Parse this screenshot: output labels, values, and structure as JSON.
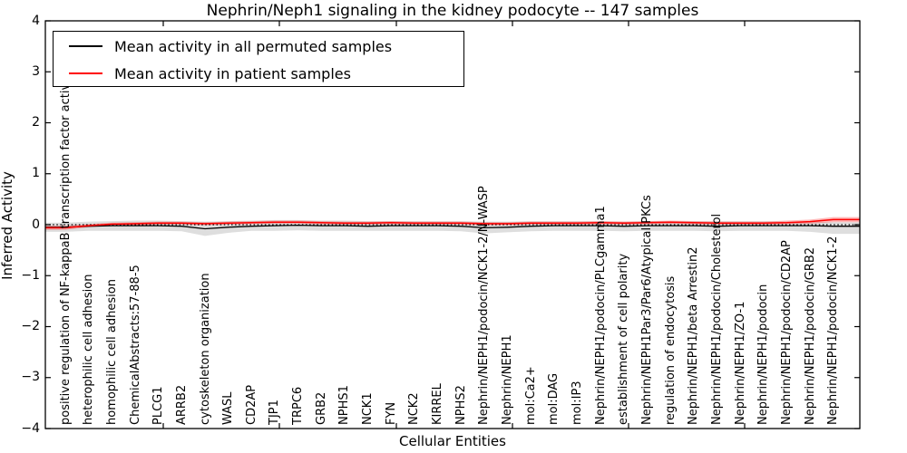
{
  "chart_data": {
    "type": "line",
    "title": "Nephrin/Neph1 signaling in the kidney podocyte -- 147 samples",
    "xlabel": "Cellular Entities",
    "ylabel": "Inferred Activity",
    "ylim": [
      -4,
      4
    ],
    "ytick_labels": [
      "4",
      "3",
      "2",
      "1",
      "0",
      "−1",
      "−2",
      "−3",
      "−4"
    ],
    "ytick_values": [
      4,
      3,
      2,
      1,
      0,
      -1,
      -2,
      -3,
      -4
    ],
    "grid": false,
    "legend_position": "upper left",
    "zero_line": {
      "y": 0,
      "style": "dotted",
      "color": "#000000"
    },
    "categories": [
      "positive regulation of NF-kappaB transcription factor activity",
      "heterophilic cell adhesion",
      "homophilic cell adhesion",
      "ChemicalAbstracts:57-88-5",
      "PLCG1",
      "ARRB2",
      "cytoskeleton organization",
      "WASL",
      "CD2AP",
      "TJP1",
      "TRPC6",
      "GRB2",
      "NPHS1",
      "NCK1",
      "FYN",
      "NCK2",
      "KIRREL",
      "NPHS2",
      "Nephrin/NEPH1/podocin/NCK1-2/N-WASP",
      "Nephrin/NEPH1",
      "mol:Ca2+",
      "mol:DAG",
      "mol:IP3",
      "Nephrin/NEPH1/podocin/PLCgamma1",
      "establishment of cell polarity",
      "Nephrin/NEPH1Par3/Par6/Atypical PKCs",
      "regulation of endocytosis",
      "Nephrin/NEPH1/beta Arrestin2",
      "Nephrin/NEPH1/podocin/Cholesterol",
      "Nephrin/NEPH1/ZO-1",
      "Nephrin/NEPH1/podocin",
      "Nephrin/NEPH1/podocin/CD2AP",
      "Nephrin/NEPH1/podocin/GRB2",
      "Nephrin/NEPH1/podocin/NCK1-2"
    ],
    "series": [
      {
        "name": "Mean activity in all permuted samples",
        "color": "#000000",
        "line_width": 1.3,
        "values": [
          -0.05,
          -0.03,
          -0.02,
          -0.02,
          -0.02,
          -0.03,
          -0.08,
          -0.05,
          -0.03,
          -0.02,
          -0.01,
          -0.02,
          -0.02,
          -0.03,
          -0.02,
          -0.02,
          -0.02,
          -0.03,
          -0.06,
          -0.05,
          -0.03,
          -0.02,
          -0.02,
          -0.02,
          -0.03,
          -0.02,
          -0.02,
          -0.02,
          -0.03,
          -0.02,
          -0.02,
          -0.02,
          -0.02,
          -0.03
        ],
        "band_upper": [
          0.04,
          0.06,
          0.07,
          0.08,
          0.08,
          0.07,
          0.06,
          0.07,
          0.08,
          0.09,
          0.09,
          0.08,
          0.08,
          0.07,
          0.07,
          0.07,
          0.07,
          0.07,
          0.06,
          0.06,
          0.07,
          0.07,
          0.07,
          0.07,
          0.06,
          0.07,
          0.07,
          0.07,
          0.07,
          0.07,
          0.07,
          0.06,
          0.06,
          0.05
        ],
        "band_lower": [
          -0.14,
          -0.12,
          -0.12,
          -0.12,
          -0.12,
          -0.13,
          -0.22,
          -0.16,
          -0.12,
          -0.12,
          -0.11,
          -0.12,
          -0.12,
          -0.12,
          -0.12,
          -0.12,
          -0.12,
          -0.13,
          -0.17,
          -0.15,
          -0.13,
          -0.12,
          -0.12,
          -0.12,
          -0.13,
          -0.12,
          -0.12,
          -0.12,
          -0.13,
          -0.12,
          -0.12,
          -0.12,
          -0.14,
          -0.18
        ],
        "band_color": "rgba(0,0,0,0.13)"
      },
      {
        "name": "Mean activity in patient samples",
        "color": "#ff0000",
        "line_width": 1.5,
        "values": [
          -0.06,
          -0.02,
          0.01,
          0.02,
          0.03,
          0.03,
          0.02,
          0.03,
          0.04,
          0.05,
          0.05,
          0.04,
          0.03,
          0.03,
          0.04,
          0.03,
          0.03,
          0.03,
          0.02,
          0.02,
          0.03,
          0.03,
          0.03,
          0.04,
          0.03,
          0.04,
          0.05,
          0.04,
          0.03,
          0.03,
          0.03,
          0.04,
          0.06,
          0.1
        ],
        "band_upper": [
          -0.02,
          0.01,
          0.04,
          0.05,
          0.06,
          0.06,
          0.05,
          0.06,
          0.07,
          0.08,
          0.08,
          0.07,
          0.06,
          0.06,
          0.07,
          0.06,
          0.06,
          0.06,
          0.05,
          0.05,
          0.06,
          0.06,
          0.06,
          0.07,
          0.06,
          0.07,
          0.08,
          0.07,
          0.06,
          0.06,
          0.06,
          0.08,
          0.1,
          0.15
        ],
        "band_lower": [
          -0.1,
          -0.05,
          -0.02,
          -0.01,
          0.0,
          0.0,
          -0.01,
          0.0,
          0.01,
          0.02,
          0.02,
          0.01,
          0.0,
          0.0,
          0.01,
          0.0,
          0.0,
          0.0,
          -0.01,
          -0.01,
          0.0,
          0.0,
          0.0,
          0.01,
          0.0,
          0.01,
          0.02,
          0.01,
          0.0,
          0.0,
          0.0,
          0.01,
          0.02,
          0.05
        ],
        "band_color": "rgba(255,0,0,0.28)"
      }
    ],
    "sample_count_in_title": "147"
  }
}
